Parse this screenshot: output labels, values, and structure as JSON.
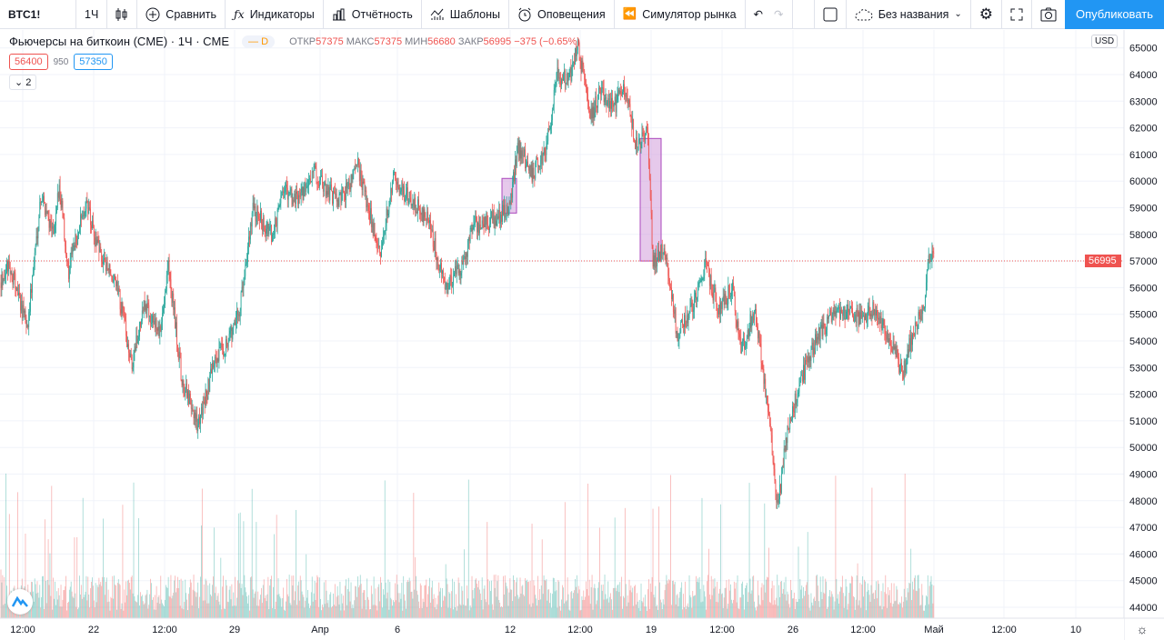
{
  "toolbar": {
    "symbol": "BTC1!",
    "interval": "1Ч",
    "compare": "Сравнить",
    "indicators": "Индикаторы",
    "reports": "Отчётность",
    "templates": "Шаблоны",
    "alerts": "Оповещения",
    "replay": "Симулятор рынка",
    "layout_name": "Без названия",
    "publish": "Опубликовать"
  },
  "legend": {
    "title": "Фьючерсы на биткоин (CME) · 1Ч · CME",
    "badge": "D",
    "open_label": "ОТКР",
    "open": "57375",
    "high_label": "МАКС",
    "high": "57375",
    "low_label": "МИН",
    "low": "56680",
    "close_label": "ЗАКР",
    "close": "56995",
    "change": "−375 (−0.65%)",
    "bid": "56400",
    "spread": "950",
    "ask": "57350",
    "collapsed_count": "2"
  },
  "axis": {
    "currency": "USD",
    "last_price": "56995",
    "price_ticks": [
      "65000",
      "64000",
      "63000",
      "62000",
      "61000",
      "60000",
      "59000",
      "58000",
      "57000",
      "56000",
      "55000",
      "54000",
      "53000",
      "52000",
      "51000",
      "50000",
      "49000",
      "48000",
      "47000",
      "46000",
      "45000",
      "44000"
    ],
    "time_ticks": [
      "12:00",
      "22",
      "12:00",
      "29",
      "Апр",
      "6",
      "12",
      "12:00",
      "19",
      "12:00",
      "26",
      "12:00",
      "Май",
      "12:00",
      "10"
    ]
  },
  "colors": {
    "up": "#26a69a",
    "down": "#ef5350",
    "accent": "#2196f3",
    "box": "#ce93d8"
  },
  "chart_data": {
    "type": "candlestick",
    "interval": "1H",
    "ylim": [
      43500,
      65500
    ],
    "price_anchors": [
      [
        0,
        56200
      ],
      [
        10,
        56900
      ],
      [
        30,
        54500
      ],
      [
        45,
        59500
      ],
      [
        60,
        57900
      ],
      [
        65,
        60000
      ],
      [
        75,
        56600
      ],
      [
        95,
        59300
      ],
      [
        105,
        57600
      ],
      [
        130,
        55900
      ],
      [
        145,
        53100
      ],
      [
        160,
        55500
      ],
      [
        175,
        54200
      ],
      [
        185,
        56900
      ],
      [
        200,
        52500
      ],
      [
        218,
        50800
      ],
      [
        235,
        53100
      ],
      [
        258,
        54500
      ],
      [
        265,
        55500
      ],
      [
        278,
        59000
      ],
      [
        300,
        57900
      ],
      [
        310,
        59600
      ],
      [
        330,
        59300
      ],
      [
        345,
        60300
      ],
      [
        360,
        59600
      ],
      [
        375,
        59300
      ],
      [
        393,
        60600
      ],
      [
        405,
        59000
      ],
      [
        418,
        57200
      ],
      [
        432,
        60100
      ],
      [
        450,
        59300
      ],
      [
        470,
        58600
      ],
      [
        490,
        56000
      ],
      [
        510,
        56900
      ],
      [
        520,
        58300
      ],
      [
        545,
        58600
      ],
      [
        560,
        59000
      ],
      [
        570,
        61300
      ],
      [
        585,
        60300
      ],
      [
        600,
        61000
      ],
      [
        612,
        64000
      ],
      [
        625,
        63700
      ],
      [
        635,
        65100
      ],
      [
        650,
        62400
      ],
      [
        660,
        63400
      ],
      [
        675,
        62700
      ],
      [
        685,
        63700
      ],
      [
        700,
        61300
      ],
      [
        712,
        62000
      ],
      [
        718,
        56900
      ],
      [
        730,
        57600
      ],
      [
        745,
        54200
      ],
      [
        760,
        55200
      ],
      [
        775,
        56900
      ],
      [
        790,
        55200
      ],
      [
        805,
        56000
      ],
      [
        815,
        53600
      ],
      [
        830,
        55200
      ],
      [
        845,
        51400
      ],
      [
        855,
        47700
      ],
      [
        865,
        50400
      ],
      [
        880,
        52500
      ],
      [
        900,
        54200
      ],
      [
        920,
        55200
      ],
      [
        945,
        54900
      ],
      [
        960,
        55200
      ],
      [
        975,
        54200
      ],
      [
        993,
        52800
      ],
      [
        1005,
        54500
      ],
      [
        1015,
        55000
      ],
      [
        1022,
        57200
      ],
      [
        1027,
        56995
      ]
    ],
    "gap_boxes": [
      {
        "from": 58800,
        "to": 60100
      },
      {
        "from": 57000,
        "to": 61600
      }
    ]
  }
}
